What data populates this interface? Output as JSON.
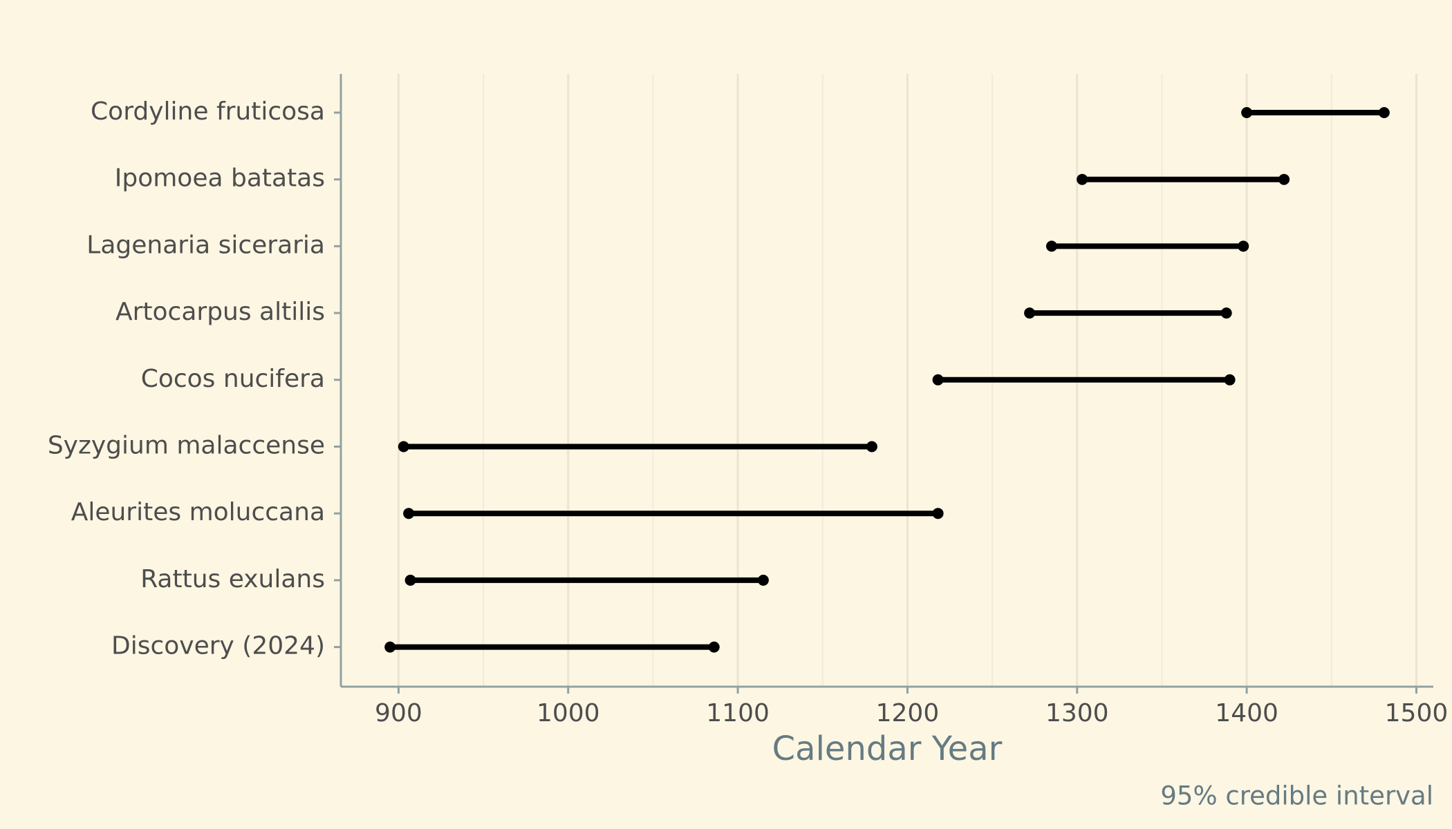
{
  "chart_data": {
    "type": "dumbbell",
    "xlabel": "Calendar Year",
    "annotation": "95% credible interval",
    "categories": [
      "Cordyline fruticosa",
      "Ipomoea batatas",
      "Lagenaria siceraria",
      "Artocarpus altilis",
      "Cocos nucifera",
      "Syzygium malaccense",
      "Aleurites moluccana",
      "Rattus exulans",
      "Discovery (2024)"
    ],
    "low": [
      1400,
      1303,
      1285,
      1272,
      1218,
      903,
      906,
      907,
      895
    ],
    "high": [
      1481,
      1422,
      1398,
      1388,
      1390,
      1179,
      1218,
      1115,
      1086
    ],
    "color": "#000000",
    "xlim": [
      866,
      1510
    ],
    "xticks": [
      900,
      1000,
      1100,
      1200,
      1300,
      1400,
      1500
    ],
    "xminor": [
      950,
      1050,
      1150,
      1250,
      1350,
      1450
    ],
    "grid": true
  }
}
